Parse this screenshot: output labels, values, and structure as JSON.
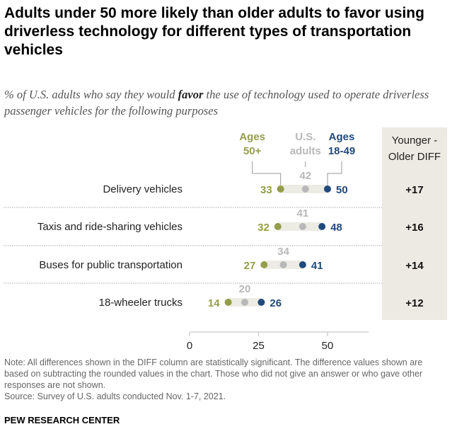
{
  "title": "Adults under 50 more likely than older adults to favor using driverless technology for different types of transportation vehicles",
  "subtitle_pre": "% of U.S. adults who say they would ",
  "subtitle_em": "favor",
  "subtitle_post": " the use of technology used to operate driverless passenger vehicles for the following purposes",
  "note": "Note: All differences shown in the DIFF column are statistically significant. The difference values shown are based on subtracting the rounded values in the chart. Those who did not give an answer or who gave other responses are not shown.",
  "source": "Source: Survey of U.S. adults conducted Nov. 1-7, 2021.",
  "brand": "PEW RESEARCH CENTER",
  "chart_data": {
    "type": "dot",
    "categories": [
      "Delivery vehicles",
      "Taxis and ride-sharing vehicles",
      "Buses for public transportation",
      "18-wheeler trucks"
    ],
    "series": [
      {
        "name": "Ages 50+",
        "label_lines": [
          "Ages",
          "50+"
        ],
        "color": "#949d48",
        "values": [
          33,
          32,
          27,
          14
        ]
      },
      {
        "name": "U.S. adults",
        "label_lines": [
          "U.S.",
          "adults"
        ],
        "color": "#b8b8b8",
        "values": [
          42,
          41,
          34,
          20
        ]
      },
      {
        "name": "Ages 18-49",
        "label_lines": [
          "Ages",
          "18-49"
        ],
        "color": "#1f4a7d",
        "values": [
          50,
          48,
          41,
          26
        ]
      }
    ],
    "diff_header": [
      "Younger -",
      "Older DIFF"
    ],
    "diff": [
      "+17",
      "+16",
      "+14",
      "+12"
    ],
    "xlim": [
      0,
      65
    ],
    "xticks": [
      0,
      25,
      50
    ]
  }
}
